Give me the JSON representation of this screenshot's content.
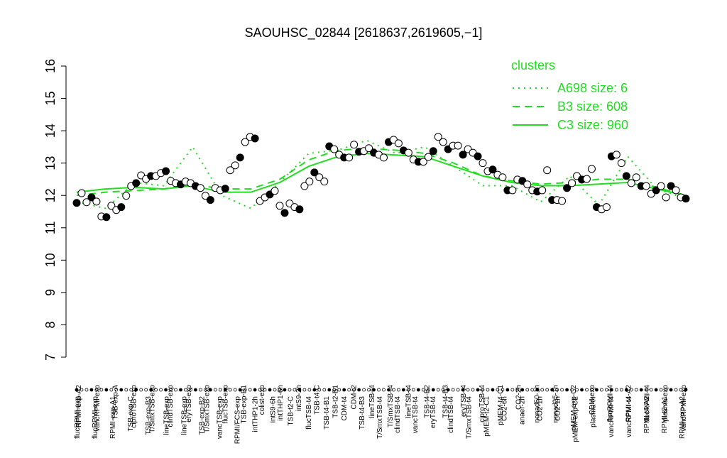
{
  "chart_data": {
    "type": "scatter",
    "title": "SAOUHSC_02844 [2618637,2619605,−1]",
    "ylim": [
      7,
      16
    ],
    "yticks": [
      7,
      8,
      9,
      10,
      11,
      12,
      13,
      14,
      15,
      16
    ],
    "point_color": "#000000",
    "values": [
      11.77,
      12.07,
      11.79,
      11.94,
      11.81,
      11.35,
      11.33,
      11.68,
      11.55,
      11.64,
      11.99,
      12.29,
      12.38,
      12.62,
      12.51,
      12.6,
      12.6,
      12.69,
      12.75,
      12.45,
      12.38,
      12.34,
      12.43,
      12.38,
      12.29,
      12.23,
      11.99,
      11.86,
      12.23,
      12.16,
      12.21,
      12.78,
      12.93,
      13.17,
      13.65,
      13.81,
      13.76,
      11.83,
      11.94,
      12.03,
      12.14,
      11.68,
      11.46,
      11.75,
      11.64,
      11.57,
      12.29,
      12.43,
      12.71,
      12.56,
      12.43,
      13.52,
      13.43,
      13.26,
      13.17,
      13.17,
      13.57,
      13.35,
      13.37,
      13.46,
      13.32,
      13.26,
      13.17,
      13.65,
      13.72,
      13.61,
      13.39,
      13.32,
      13.11,
      13.04,
      13.04,
      13.19,
      13.37,
      13.81,
      13.65,
      13.43,
      13.54,
      13.54,
      13.26,
      13.43,
      13.32,
      13.21,
      13.0,
      12.75,
      12.8,
      12.64,
      12.56,
      12.16,
      12.16,
      12.49,
      12.45,
      12.34,
      12.16,
      12.12,
      12.16,
      12.78,
      11.86,
      11.86,
      11.83,
      12.23,
      12.38,
      12.6,
      12.49,
      12.51,
      12.82,
      11.64,
      11.57,
      11.64,
      13.21,
      13.26,
      13.0,
      12.6,
      12.38,
      12.56,
      12.29,
      12.29,
      12.05,
      12.16,
      12.29,
      11.94,
      12.29,
      12.16,
      11.94,
      11.9
    ],
    "legend_title": "clusters",
    "series": [
      {
        "name": "A698 size: 6",
        "style": "dotted",
        "color": "#22dd22",
        "values": [
          11.8,
          11.6,
          12.4,
          12.3,
          13.5,
          12.0,
          11.6,
          12.4,
          13.3,
          13.4,
          13.7,
          13.3,
          13.5,
          12.9,
          12.3,
          12.3,
          11.8,
          12.6,
          11.7,
          13.2,
          12.2,
          11.9
        ]
      },
      {
        "name": "B3 size: 608",
        "style": "dashed",
        "color": "#22dd22",
        "values": [
          12.0,
          12.1,
          12.15,
          12.2,
          12.35,
          12.2,
          12.2,
          12.5,
          13.1,
          13.4,
          13.45,
          13.4,
          13.3,
          13.0,
          12.6,
          12.45,
          12.35,
          12.4,
          12.5,
          12.5,
          12.25,
          12.0
        ]
      },
      {
        "name": "C3 size: 960",
        "style": "solid",
        "color": "#22dd22",
        "values": [
          12.1,
          12.2,
          12.25,
          12.2,
          12.3,
          12.1,
          12.1,
          12.4,
          12.9,
          13.2,
          13.3,
          13.25,
          13.2,
          12.9,
          12.6,
          12.4,
          12.3,
          12.3,
          12.35,
          12.4,
          12.2,
          12.0
        ]
      }
    ],
    "top_labels": [
      "RPMI-exp-A2",
      "vancRPMI-exp",
      "TSB-exp-A",
      "ciproTSB-exp",
      "T/SmxTSB-exp",
      "clindTSB-exp",
      "eryTSB-exp",
      "T/SmxTSB-exp",
      "flucTSB-exp",
      "TSB-exp-B1",
      "colist-exp",
      "intTHP1-6h",
      "intS9-2h",
      "TSB-t4-C",
      "TSB-t2-B1",
      "CDM-t2",
      "lineTSB-t4",
      "T/SmxTSB-t4",
      "lineTSB-t4",
      "TSB-t4-B2",
      "TSB-t4-B3",
      "eryTSB-t4",
      "ciproTSB-t4",
      "pMEM-t4-C1",
      "CO2-2h",
      "nonad50-1h",
      "nonad25-1h",
      "pMEM-exp-C2",
      "CDM-exp",
      "flucRPMI-t4",
      "RPMI-t4-A2",
      "flucRPMI-t4",
      "plasma-exp",
      "vancRPMI-exp"
    ],
    "bottom_labels": [
      "flucRPMI-exp",
      "flucRPMI-exp",
      "RPMI-exp-A1",
      "TSB-exp-C",
      "TSB-exp-B3",
      "lineTSB-exp",
      "lineTSB-exp",
      "TSB-exp-B2",
      "vancTSB-exp",
      "RPMI/FCS-exp",
      "intTHP1-2h",
      "intS9-6h",
      "TSB-t2-C",
      "flucTSB-t4",
      "TSB-t4-B1",
      "CDM-t4",
      "TSB-t4-B3",
      "T/SmxTSB-t4",
      "clindTSB-t4",
      "vancTSB-t4",
      "eryTSB-t4",
      "clindTSB-t4",
      "T/SmxTSB-t4",
      "pMEM-t2-C1",
      "CO2-6h",
      "anaer-2h",
      "CO2-1h",
      "CO2-1h",
      "pMEM-exp-C1",
      "plasma-t4",
      "vancRPMI-t4",
      "vancRPMI-t4",
      "RPMI-t4-A2",
      "RPMI-t2-A1",
      "RPMI-exp-A2"
    ]
  }
}
